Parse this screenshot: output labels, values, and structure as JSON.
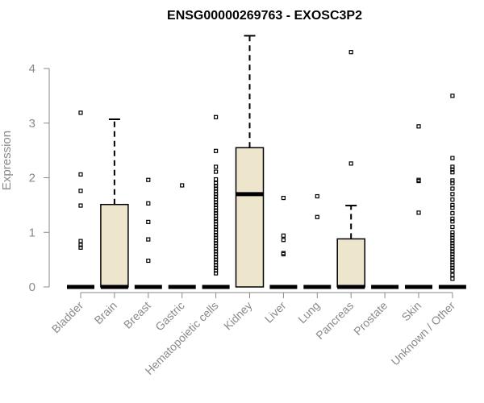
{
  "chart_data": {
    "type": "box",
    "title": "ENSG00000269763 - EXOSC3P2",
    "ylabel": "Expression",
    "xlabel": "",
    "ylim": [
      0,
      4.6
    ],
    "yticks": [
      0,
      1,
      2,
      3,
      4
    ],
    "grid": false,
    "colors": {
      "box_fill": "#ede6cc",
      "stroke": "#000000",
      "axis": "#8a8a8a"
    },
    "categories": [
      "Bladder",
      "Brain",
      "Breast",
      "Gastric",
      "Hematopoietic cells",
      "Kidney",
      "Liver",
      "Lung",
      "Pancreas",
      "Prostate",
      "Skin",
      "Unknown / Other"
    ],
    "boxes": [
      {
        "category": "Bladder",
        "q1": 0,
        "median": 0,
        "q3": 0,
        "whisker_low": 0,
        "whisker_high": 0,
        "outliers": [
          3.19,
          2.06,
          1.76,
          1.49,
          0.84,
          0.77,
          0.72
        ]
      },
      {
        "category": "Brain",
        "q1": 0,
        "median": 0,
        "q3": 1.51,
        "whisker_low": 0,
        "whisker_high": 3.07,
        "outliers": []
      },
      {
        "category": "Breast",
        "q1": 0,
        "median": 0,
        "q3": 0,
        "whisker_low": 0,
        "whisker_high": 0,
        "outliers": [
          1.96,
          1.53,
          1.19,
          0.87,
          0.48
        ]
      },
      {
        "category": "Gastric",
        "q1": 0,
        "median": 0,
        "q3": 0,
        "whisker_low": 0,
        "whisker_high": 0,
        "outliers": [
          1.86
        ]
      },
      {
        "category": "Hematopoietic cells",
        "q1": 0,
        "median": 0,
        "q3": 0,
        "whisker_low": 0,
        "whisker_high": 0,
        "outliers": [
          3.11,
          2.49,
          2.2,
          2.11,
          1.97,
          1.9,
          1.85,
          1.8,
          1.75,
          1.7,
          1.65,
          1.6,
          1.55,
          1.5,
          1.45,
          1.4,
          1.35,
          1.3,
          1.25,
          1.2,
          1.15,
          1.1,
          1.05,
          1.0,
          0.95,
          0.9,
          0.85,
          0.8,
          0.75,
          0.7,
          0.65,
          0.6,
          0.55,
          0.5,
          0.45,
          0.4,
          0.35,
          0.3,
          0.25
        ]
      },
      {
        "category": "Kidney",
        "q1": 0,
        "median": 1.7,
        "q3": 2.55,
        "whisker_low": 0,
        "whisker_high": 4.6,
        "outliers": []
      },
      {
        "category": "Liver",
        "q1": 0,
        "median": 0,
        "q3": 0,
        "whisker_low": 0,
        "whisker_high": 0,
        "outliers": [
          1.63,
          0.94,
          0.86,
          0.62,
          0.6
        ]
      },
      {
        "category": "Lung",
        "q1": 0,
        "median": 0,
        "q3": 0,
        "whisker_low": 0,
        "whisker_high": 0,
        "outliers": [
          1.66,
          1.28
        ]
      },
      {
        "category": "Pancreas",
        "q1": 0,
        "median": 0,
        "q3": 0.88,
        "whisker_low": 0,
        "whisker_high": 1.49,
        "outliers": [
          4.3,
          2.26
        ]
      },
      {
        "category": "Prostate",
        "q1": 0,
        "median": 0,
        "q3": 0,
        "whisker_low": 0,
        "whisker_high": 0,
        "outliers": []
      },
      {
        "category": "Skin",
        "q1": 0,
        "median": 0,
        "q3": 0,
        "whisker_low": 0,
        "whisker_high": 0,
        "outliers": [
          2.94,
          1.96,
          1.94,
          1.36
        ]
      },
      {
        "category": "Unknown / Other",
        "q1": 0,
        "median": 0,
        "q3": 0,
        "whisker_low": 0,
        "whisker_high": 0,
        "outliers": [
          3.5,
          2.36,
          2.2,
          2.15,
          2.1,
          1.95,
          1.9,
          1.8,
          1.7,
          1.6,
          1.5,
          1.45,
          1.35,
          1.25,
          1.2,
          1.1,
          1.0,
          0.95,
          0.9,
          0.85,
          0.8,
          0.75,
          0.7,
          0.65,
          0.6,
          0.55,
          0.5,
          0.45,
          0.4,
          0.35,
          0.3,
          0.22,
          0.15
        ]
      }
    ]
  }
}
